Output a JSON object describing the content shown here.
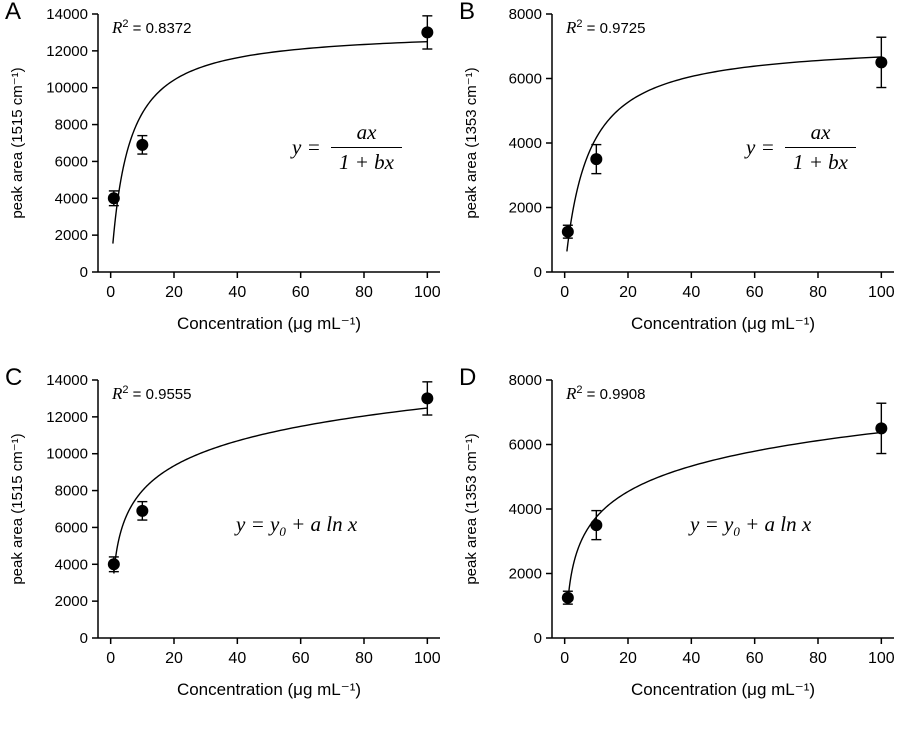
{
  "figure": {
    "background": "#ffffff",
    "axis_color": "#000000",
    "point_color": "#000000",
    "curve_color": "#000000"
  },
  "chart_data": [
    {
      "type": "scatter",
      "panel": "A",
      "xlabel": "Concentration (μg mL⁻¹)",
      "ylabel": "peak area (1515 cm⁻¹)",
      "xlim": [
        -4,
        104
      ],
      "ylim": [
        0,
        14000
      ],
      "x_ticks": [
        0,
        20,
        40,
        60,
        80,
        100
      ],
      "y_ticks": [
        0,
        2000,
        4000,
        6000,
        8000,
        10000,
        12000,
        14000
      ],
      "grid": false,
      "legend": "none",
      "x": [
        1,
        10,
        100
      ],
      "y": [
        4000,
        6900,
        13000
      ],
      "y_err": [
        400,
        500,
        900
      ],
      "r2": {
        "sym": "R",
        "sup": "2",
        "rest": " = 0.8372"
      },
      "equation": {
        "kind": "frac",
        "lhs": "y = ",
        "num": "ax",
        "den": "1 + bx"
      },
      "fit": {
        "kind": "sat",
        "a": 2500,
        "b": 0.19,
        "x_start": 0.7
      }
    },
    {
      "type": "scatter",
      "panel": "B",
      "xlabel": "Concentration (μg mL⁻¹)",
      "ylabel": "peak area (1353 cm⁻¹)",
      "xlim": [
        -4,
        104
      ],
      "ylim": [
        0,
        8000
      ],
      "x_ticks": [
        0,
        20,
        40,
        60,
        80,
        100
      ],
      "y_ticks": [
        0,
        2000,
        4000,
        6000,
        8000
      ],
      "grid": false,
      "legend": "none",
      "x": [
        1,
        10,
        100
      ],
      "y": [
        1250,
        3500,
        6500
      ],
      "y_err": [
        200,
        450,
        780
      ],
      "r2": {
        "sym": "R",
        "sup": "2",
        "rest": " = 0.9725"
      },
      "equation": {
        "kind": "frac",
        "lhs": "y = ",
        "num": "ax",
        "den": "1 + bx"
      },
      "fit": {
        "kind": "sat",
        "a": 1000,
        "b": 0.14,
        "x_start": 0.7
      }
    },
    {
      "type": "scatter",
      "panel": "C",
      "xlabel": "Concentration (μg mL⁻¹)",
      "ylabel": "peak area (1515 cm⁻¹)",
      "xlim": [
        -4,
        104
      ],
      "ylim": [
        0,
        14000
      ],
      "x_ticks": [
        0,
        20,
        40,
        60,
        80,
        100
      ],
      "y_ticks": [
        0,
        2000,
        4000,
        6000,
        8000,
        10000,
        12000,
        14000
      ],
      "grid": false,
      "legend": "none",
      "x": [
        1,
        10,
        100
      ],
      "y": [
        4000,
        6900,
        13000
      ],
      "y_err": [
        400,
        500,
        900
      ],
      "r2": {
        "sym": "R",
        "sup": "2",
        "rest": " = 0.9555"
      },
      "equation": {
        "kind": "log",
        "pre": "y = y",
        "sub": "0",
        "post": " + a ln x"
      },
      "fit": {
        "kind": "log",
        "y0": 3500,
        "a": 1950,
        "x_start": 1
      }
    },
    {
      "type": "scatter",
      "panel": "D",
      "xlabel": "Concentration (μg mL⁻¹)",
      "ylabel": "peak area (1353 cm⁻¹)",
      "xlim": [
        -4,
        104
      ],
      "ylim": [
        0,
        8000
      ],
      "x_ticks": [
        0,
        20,
        40,
        60,
        80,
        100
      ],
      "y_ticks": [
        0,
        2000,
        4000,
        6000,
        8000
      ],
      "grid": false,
      "legend": "none",
      "x": [
        1,
        10,
        100
      ],
      "y": [
        1250,
        3500,
        6500
      ],
      "y_err": [
        200,
        450,
        780
      ],
      "r2": {
        "sym": "R",
        "sup": "2",
        "rest": " = 0.9908"
      },
      "equation": {
        "kind": "log",
        "pre": "y = y",
        "sub": "0",
        "post": " + a ln x"
      },
      "fit": {
        "kind": "log",
        "y0": 1125,
        "a": 1140,
        "x_start": 1
      }
    }
  ]
}
